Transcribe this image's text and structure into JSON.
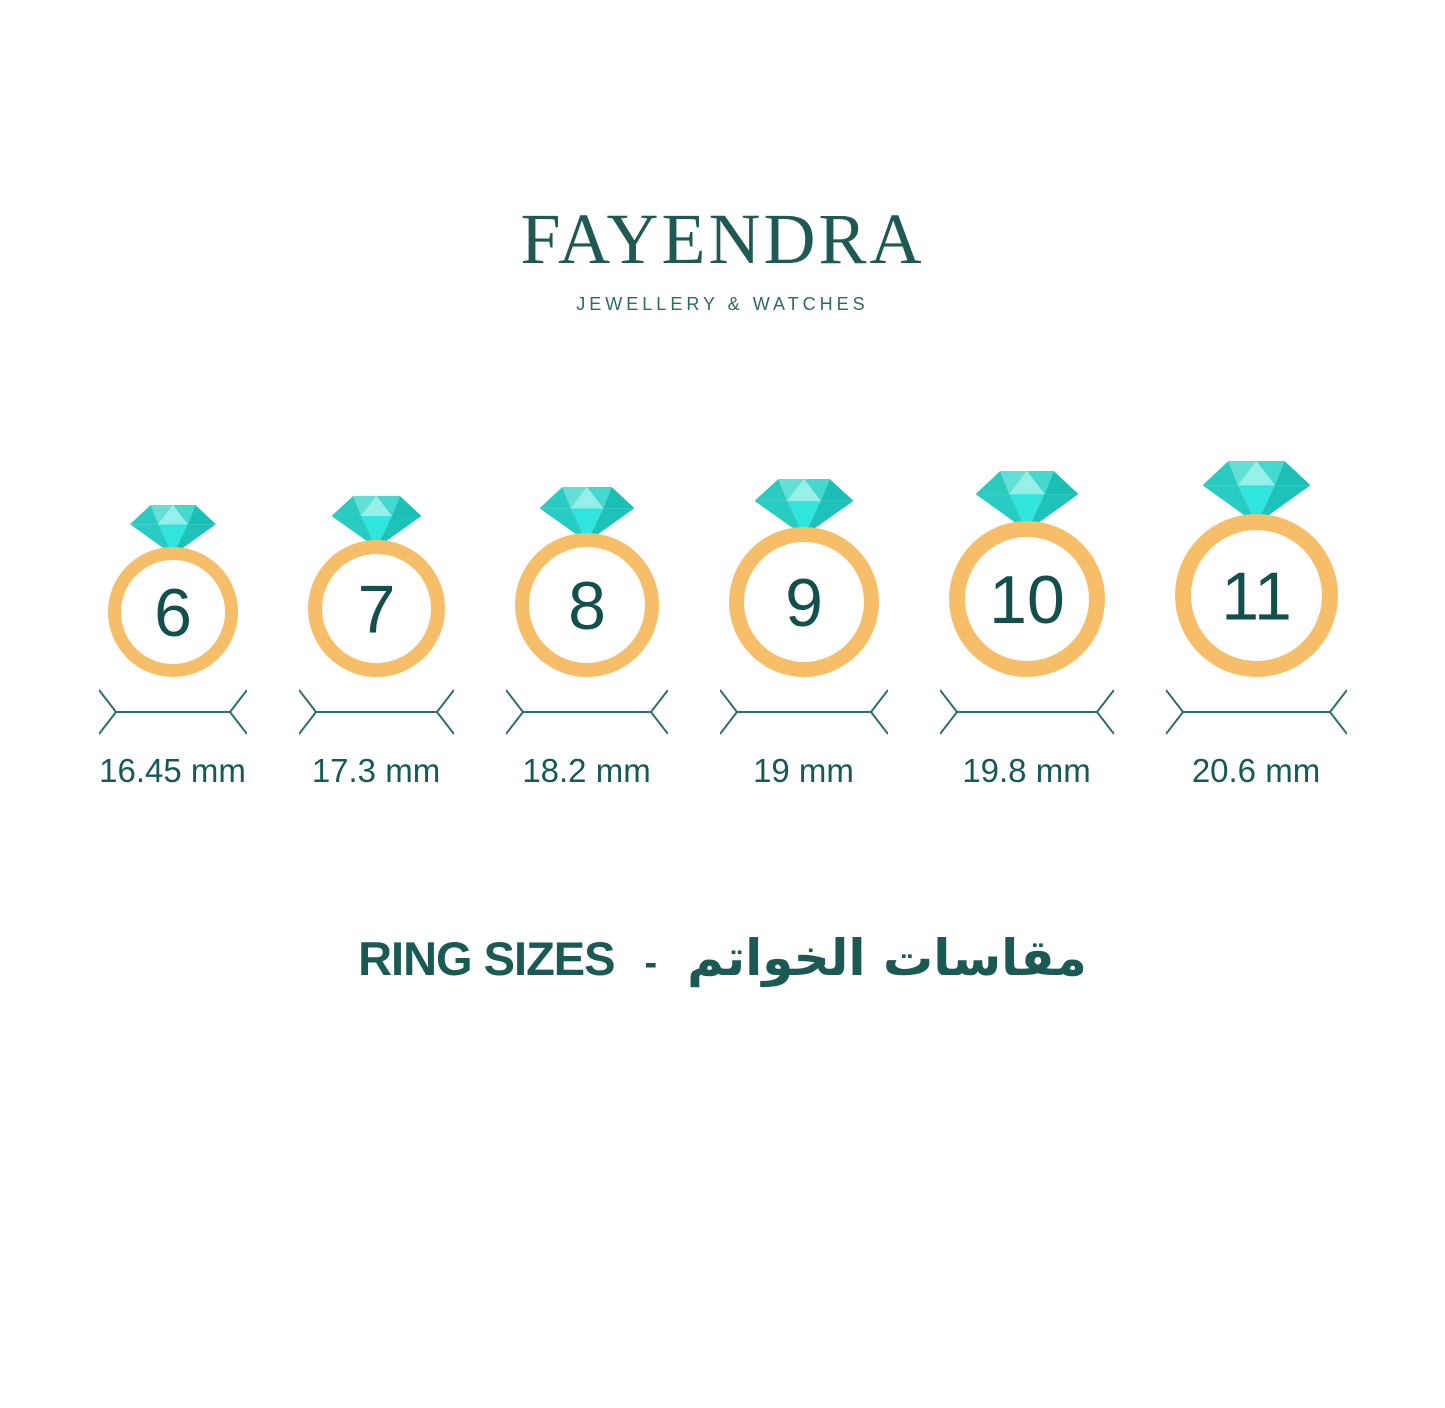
{
  "brand": {
    "name": "FAYENDRA",
    "tagline": "JEWELLERY & WATCHES"
  },
  "rings": [
    {
      "size": "6",
      "diameter_mm": 16.45,
      "diameter_label": "16.45 mm"
    },
    {
      "size": "7",
      "diameter_mm": 17.3,
      "diameter_label": "17.3 mm"
    },
    {
      "size": "8",
      "diameter_mm": 18.2,
      "diameter_label": "18.2 mm"
    },
    {
      "size": "9",
      "diameter_mm": 19.0,
      "diameter_label": "19 mm"
    },
    {
      "size": "10",
      "diameter_mm": 19.8,
      "diameter_label": "19.8 mm"
    },
    {
      "size": "11",
      "diameter_mm": 20.6,
      "diameter_label": "20.6 mm"
    }
  ],
  "footer": {
    "title_en": "RING SIZES",
    "separator": "-",
    "title_ar": "مقاسات الخواتم"
  },
  "colors": {
    "brand_teal": "#1E5A52",
    "tagline_teal": "#2C6B62",
    "text_teal": "#175A54",
    "title_teal": "#1A5A52",
    "number_teal": "#134F4B",
    "band_gold": "#F7BE6A",
    "measure_line": "#2E6F68",
    "diamond_facets": [
      "#2BCBC2",
      "#63DFD6",
      "#96EFE8",
      "#45D8CE",
      "#1CBFB5",
      "#28CCC2",
      "#30E5DE",
      "#1FC2B8"
    ]
  }
}
